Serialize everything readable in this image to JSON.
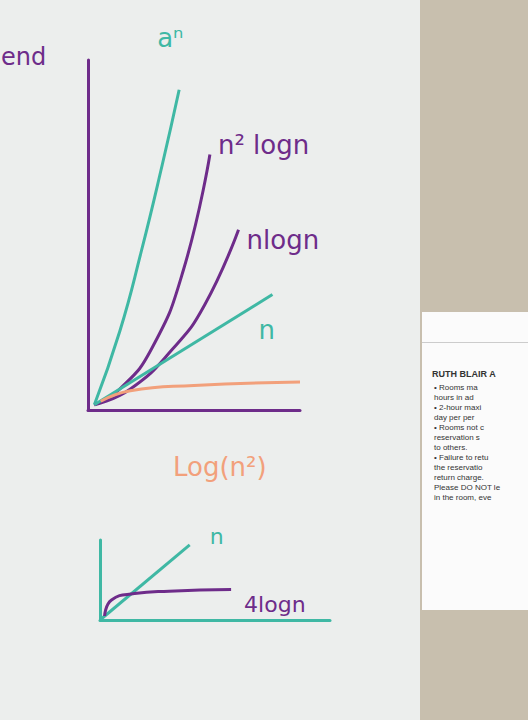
{
  "chart_data": [
    {
      "type": "line",
      "title": "end",
      "tick_labels": false,
      "grid": false,
      "xlim": [
        0,
        10
      ],
      "ylim": [
        0,
        20
      ],
      "series": [
        {
          "name": "aⁿ",
          "color": "#3fb8a4",
          "x": [
            0.3,
            1.5,
            2.5,
            3.5,
            4.3
          ],
          "values": [
            0.3,
            4.5,
            9,
            14,
            18.3
          ]
        },
        {
          "name": "n² logn",
          "color": "#6e2c8a",
          "x": [
            0.3,
            1.5,
            3,
            4.5,
            5.75
          ],
          "values": [
            0.3,
            1.2,
            3.5,
            8,
            14.6
          ]
        },
        {
          "name": "nlogn",
          "color": "#6e2c8a",
          "x": [
            0.3,
            2,
            4,
            5.5,
            7.1
          ],
          "values": [
            0.3,
            1.2,
            3.5,
            6,
            10.3
          ]
        },
        {
          "name": "n",
          "color": "#3fb8a4",
          "x": [
            0.3,
            8.7
          ],
          "values": [
            0.3,
            6.6
          ]
        },
        {
          "name": "Log(n²)",
          "color": "#f2a07b",
          "x": [
            0.6,
            2,
            5,
            10
          ],
          "values": [
            0.5,
            1.1,
            1.4,
            1.6
          ]
        }
      ]
    },
    {
      "type": "line",
      "tick_labels": false,
      "grid": false,
      "xlim": [
        0,
        10
      ],
      "ylim": [
        0,
        10
      ],
      "series": [
        {
          "name": "n",
          "color": "#3fb8a4",
          "x": [
            0,
            3.9
          ],
          "values": [
            0,
            9.4
          ]
        },
        {
          "name": "4logn",
          "color": "#6e2c8a",
          "x": [
            0.2,
            0.5,
            1.5,
            3,
            5.7
          ],
          "values": [
            0.5,
            2.5,
            3.3,
            3.6,
            3.8
          ]
        }
      ]
    }
  ],
  "notice": {
    "title": "RUTH BLAIR A",
    "lines": [
      "• Rooms ma",
      "hours in ad",
      "• 2-hour maxi",
      "day per per",
      "• Rooms not c",
      "reservation s",
      "to others.",
      "• Failure to retu",
      "the reservatio",
      "return charge.",
      "Please DO NOT le",
      "in the room, eve"
    ]
  }
}
